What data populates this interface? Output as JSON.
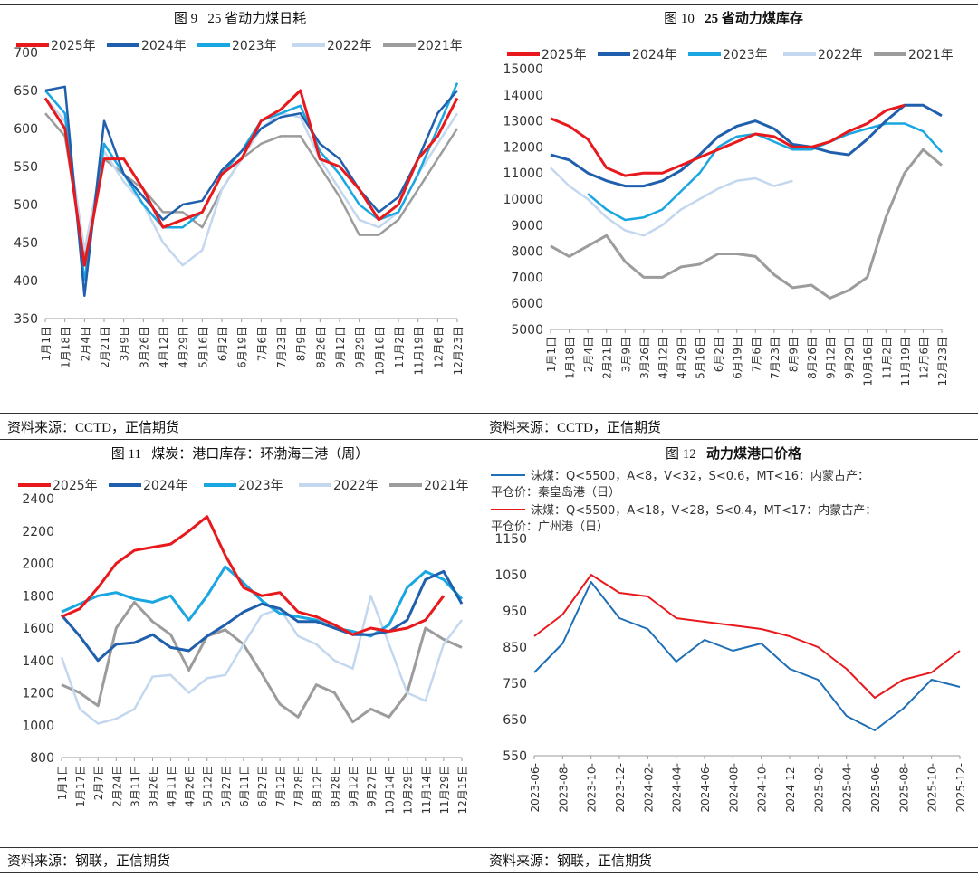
{
  "charts": [
    {
      "id": "c9",
      "fig_num": "图 9",
      "fig_title": "25 省动力煤日耗",
      "source": "资料来源：CCTD，正信期货",
      "chart_data": {
        "type": "line",
        "title": "25 省动力煤日耗",
        "ylim": [
          350,
          700
        ],
        "yticks": [
          350,
          400,
          450,
          500,
          550,
          600,
          650,
          700
        ],
        "categories": [
          "1月1日",
          "1月18日",
          "2月4日",
          "2月21日",
          "3月9日",
          "3月26日",
          "4月12日",
          "4月29日",
          "5月16日",
          "6月2日",
          "6月19日",
          "7月6日",
          "7月23日",
          "8月9日",
          "8月26日",
          "9月12日",
          "9月29日",
          "10月16日",
          "11月2日",
          "11月19日",
          "12月6日",
          "12月23日"
        ],
        "series": [
          {
            "name": "2025年",
            "color": "#e8191c",
            "width": 3,
            "values": [
              640,
              600,
              420,
              560,
              560,
              520,
              470,
              480,
              490,
              540,
              560,
              610,
              625,
              650,
              560,
              550,
              520,
              480,
              500,
              560,
              590,
              640
            ]
          },
          {
            "name": "2024年",
            "color": "#1f5fad",
            "width": 2.5,
            "values": [
              650,
              655,
              380,
              610,
              540,
              510,
              480,
              500,
              505,
              545,
              570,
              600,
              615,
              620,
              580,
              560,
              520,
              490,
              510,
              560,
              620,
              650
            ]
          },
          {
            "name": "2023年",
            "color": "#19a6e1",
            "width": 2.5,
            "values": [
              650,
              620,
              400,
              580,
              540,
              500,
              470,
              470,
              490,
              540,
              570,
              610,
              620,
              630,
              570,
              540,
              500,
              480,
              490,
              540,
              600,
              660
            ]
          },
          {
            "name": "2022年",
            "color": "#c3d7ee",
            "width": 2.5,
            "values": [
              640,
              610,
              440,
              570,
              530,
              500,
              450,
              420,
              440,
              520,
              560,
              600,
              620,
              615,
              560,
              520,
              480,
              470,
              490,
              540,
              580,
              620
            ]
          },
          {
            "name": "2021年",
            "color": "#9c9c9c",
            "width": 2.5,
            "values": [
              620,
              590,
              430,
              560,
              540,
              520,
              490,
              490,
              470,
              520,
              560,
              580,
              590,
              590,
              550,
              510,
              460,
              460,
              480,
              520,
              560,
              600
            ]
          }
        ]
      }
    },
    {
      "id": "c10",
      "fig_num": "图 10",
      "fig_title": "25 省动力煤库存",
      "source": "资料来源：CCTD，正信期货",
      "chart_data": {
        "type": "line",
        "title": "25 省动力煤库存",
        "ylim": [
          5000,
          15000
        ],
        "yticks": [
          5000,
          6000,
          7000,
          8000,
          9000,
          10000,
          11000,
          12000,
          13000,
          14000,
          15000
        ],
        "categories": [
          "1月1日",
          "1月18日",
          "2月4日",
          "2月21日",
          "3月9日",
          "3月26日",
          "4月12日",
          "4月29日",
          "5月16日",
          "6月2日",
          "6月19日",
          "7月6日",
          "7月23日",
          "8月9日",
          "8月26日",
          "9月12日",
          "9月29日",
          "10月16日",
          "11月2日",
          "11月19日",
          "12月6日",
          "12月23日"
        ],
        "series": [
          {
            "name": "2025年",
            "color": "#e8191c",
            "width": 3,
            "values": [
              13100,
              12800,
              12300,
              11200,
              10900,
              11000,
              11000,
              11300,
              11600,
              11900,
              12200,
              12500,
              12400,
              12000,
              12000,
              12200,
              12600,
              12900,
              13400,
              13600,
              null,
              null
            ]
          },
          {
            "name": "2024年",
            "color": "#1f5fad",
            "width": 3,
            "values": [
              11700,
              11500,
              11000,
              10700,
              10500,
              10500,
              10700,
              11100,
              11700,
              12400,
              12800,
              13000,
              12700,
              12100,
              12000,
              11800,
              11700,
              12300,
              13000,
              13600,
              13600,
              13200
            ]
          },
          {
            "name": "2023年",
            "color": "#19a6e1",
            "width": 2.5,
            "values": [
              null,
              null,
              10200,
              9600,
              9200,
              9300,
              9600,
              10300,
              11000,
              12000,
              12400,
              12500,
              12200,
              11900,
              11900,
              12200,
              12500,
              12700,
              12900,
              12900,
              12600,
              11800
            ]
          },
          {
            "name": "2022年",
            "color": "#c3d7ee",
            "width": 2.5,
            "values": [
              11200,
              10500,
              10000,
              9300,
              8800,
              8600,
              9000,
              9600,
              10000,
              10400,
              10700,
              10800,
              10500,
              10700,
              null,
              null,
              null,
              null,
              null,
              null,
              null,
              null
            ]
          },
          {
            "name": "2021年",
            "color": "#9c9c9c",
            "width": 3,
            "values": [
              8200,
              7800,
              8200,
              8600,
              7600,
              7000,
              7000,
              7400,
              7500,
              7900,
              7900,
              7800,
              7100,
              6600,
              6700,
              6200,
              6500,
              7000,
              9300,
              11000,
              11900,
              11300
            ]
          }
        ]
      }
    },
    {
      "id": "c11",
      "fig_num": "图 11",
      "fig_title": "煤炭：港口库存：环渤海三港（周）",
      "source": "资料来源：钢联，正信期货",
      "chart_data": {
        "type": "line",
        "title": "煤炭：港口库存：环渤海三港（周）",
        "ylim": [
          800,
          2400
        ],
        "yticks": [
          800,
          1000,
          1200,
          1400,
          1600,
          1800,
          2000,
          2200,
          2400
        ],
        "categories": [
          "1月1日",
          "1月17日",
          "2月7日",
          "2月24日",
          "3月11日",
          "3月26日",
          "4月11日",
          "4月26日",
          "5月12日",
          "5月27日",
          "6月11日",
          "6月27日",
          "7月12日",
          "7月28日",
          "8月12日",
          "8月28日",
          "9月12日",
          "9月27日",
          "10月14日",
          "10月29日",
          "11月14日",
          "11月29日",
          "12月15日"
        ],
        "series": [
          {
            "name": "2025年",
            "color": "#e8191c",
            "width": 3,
            "values": [
              1670,
              1720,
              1850,
              2000,
              2080,
              2100,
              2120,
              2200,
              2290,
              2050,
              1850,
              1800,
              1820,
              1700,
              1670,
              1620,
              1560,
              1600,
              1580,
              1600,
              1650,
              1800,
              null
            ]
          },
          {
            "name": "2024年",
            "color": "#1f5fad",
            "width": 3,
            "values": [
              1680,
              1550,
              1400,
              1500,
              1510,
              1560,
              1480,
              1460,
              1550,
              1620,
              1700,
              1750,
              1720,
              1640,
              1640,
              1600,
              1560,
              1560,
              1580,
              1650,
              1900,
              1950,
              1750
            ]
          },
          {
            "name": "2023年",
            "color": "#19a6e1",
            "width": 3,
            "values": [
              1700,
              1750,
              1800,
              1820,
              1780,
              1760,
              1800,
              1650,
              1800,
              1980,
              1880,
              1770,
              1690,
              1670,
              1650,
              1600,
              1580,
              1550,
              1620,
              1850,
              1950,
              1900,
              1780
            ]
          },
          {
            "name": "2022年",
            "color": "#c3d7ee",
            "width": 2.5,
            "values": [
              1420,
              1100,
              1010,
              1040,
              1100,
              1300,
              1310,
              1200,
              1290,
              1310,
              1500,
              1680,
              1720,
              1550,
              1500,
              1400,
              1350,
              1800,
              1500,
              1200,
              1150,
              1500,
              1650
            ]
          },
          {
            "name": "2021年",
            "color": "#9c9c9c",
            "width": 3,
            "values": [
              1250,
              1200,
              1120,
              1600,
              1760,
              1640,
              1560,
              1340,
              1550,
              1590,
              1500,
              1320,
              1130,
              1050,
              1250,
              1200,
              1020,
              1100,
              1050,
              1200,
              1600,
              1530,
              1480
            ]
          }
        ]
      }
    },
    {
      "id": "c12",
      "fig_num": "图 12",
      "fig_title": "动力煤港口价格",
      "source": "资料来源：钢联，正信期货",
      "chart_data": {
        "type": "line",
        "title": "动力煤港口价格",
        "ylim": [
          550,
          1150
        ],
        "yticks": [
          550,
          650,
          750,
          850,
          950,
          1050,
          1150
        ],
        "categories": [
          "2023-06-",
          "2023-08-",
          "2023-10-",
          "2023-12-",
          "2024-02-",
          "2024-04-",
          "2024-06-",
          "2024-08-",
          "2024-10-",
          "2024-12-",
          "2025-02-",
          "2025-04-",
          "2025-06-",
          "2025-08-",
          "2025-10-",
          "2025-12-"
        ],
        "legend": [
          {
            "name": "沫煤：Q<5500，A<8，V<32，S<0.6，MT<16：内蒙古产：平仓价：秦皇岛港（日）",
            "color": "#1f6fb6"
          },
          {
            "name": "沫煤：Q<5500，A<18，V<28，S<0.4，MT<17：内蒙古产：平仓价：广州港（日）",
            "color": "#e8191c"
          }
        ],
        "series": [
          {
            "name": "秦皇岛港",
            "color": "#1f6fb6",
            "width": 2,
            "values": [
              780,
              860,
              1030,
              930,
              900,
              810,
              870,
              840,
              860,
              790,
              760,
              660,
              620,
              680,
              760,
              740
            ]
          },
          {
            "name": "广州港",
            "color": "#e8191c",
            "width": 2,
            "values": [
              880,
              940,
              1050,
              1000,
              990,
              930,
              920,
              910,
              900,
              880,
              850,
              790,
              710,
              760,
              780,
              840
            ]
          }
        ]
      }
    }
  ]
}
